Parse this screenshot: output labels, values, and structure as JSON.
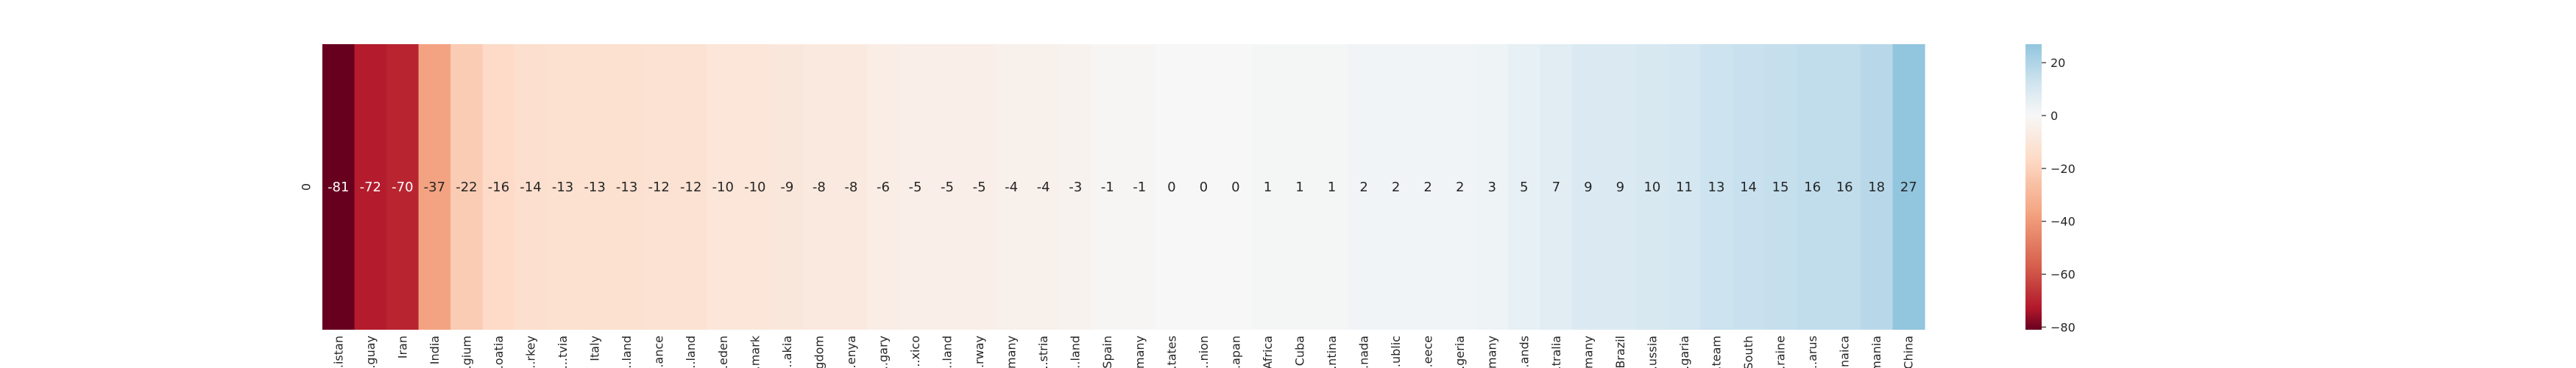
{
  "chart_data": {
    "type": "heatmap",
    "row_labels": [
      "0"
    ],
    "categories": [
      "...istan",
      "...guay",
      "Iran",
      "India",
      "...gium",
      "...oatia",
      "...rkey",
      "...tvia",
      "Italy",
      "...land",
      "...ance",
      "...land",
      "...eden",
      "...mark",
      "...akia",
      "...gdom",
      "...enya",
      "...gary",
      "...xico",
      "...land",
      "...rway",
      "...many",
      "...stria",
      "...land",
      "Spain",
      "...many",
      "...tates",
      "...nion",
      "...apan",
      "...Africa",
      "Cuba",
      "...ntina",
      "...nada",
      "...ublic",
      "...eece",
      "...geria",
      "...many",
      "...ands",
      "...tralia",
      "...many",
      "Brazil",
      "...ussia",
      "...garia",
      "...team",
      "...South",
      "...raine",
      "...arus",
      "...naica",
      "...mania",
      "China"
    ],
    "values": [
      -81,
      -72,
      -70,
      -37,
      -22,
      -16,
      -14,
      -13,
      -13,
      -13,
      -12,
      -12,
      -10,
      -10,
      -9,
      -8,
      -8,
      -6,
      -5,
      -5,
      -5,
      -4,
      -4,
      -3,
      -1,
      -1,
      0,
      0,
      0,
      1,
      1,
      1,
      2,
      2,
      2,
      2,
      3,
      5,
      7,
      9,
      9,
      10,
      11,
      13,
      14,
      15,
      16,
      16,
      18,
      27
    ],
    "colorbar": {
      "ticks": [
        20,
        0,
        -20,
        -40,
        -60,
        -80
      ],
      "range": [
        -81,
        27
      ],
      "colormap": "RdBu"
    },
    "grid": false
  }
}
